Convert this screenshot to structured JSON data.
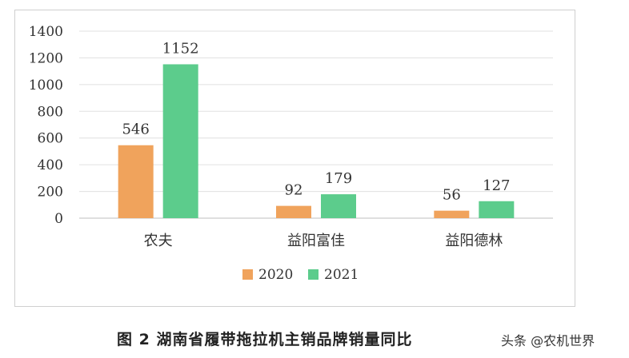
{
  "chart_data": {
    "type": "bar",
    "categories": [
      "农夫",
      "益阳富佳",
      "益阳德林"
    ],
    "series": [
      {
        "name": "2020",
        "values": [
          546,
          92,
          56
        ],
        "color": "#f0a35c"
      },
      {
        "name": "2021",
        "values": [
          1152,
          179,
          127
        ],
        "color": "#5ccc8c"
      }
    ],
    "yticks": [
      "0",
      "200",
      "400",
      "600",
      "800",
      "1000",
      "1200",
      "1400"
    ],
    "ylim": [
      0,
      1400
    ],
    "grid": true,
    "legend_position": "bottom"
  },
  "caption": "图 2  湖南省履带拖拉机主销品牌销量同比",
  "watermark": "头条 @农机世界"
}
